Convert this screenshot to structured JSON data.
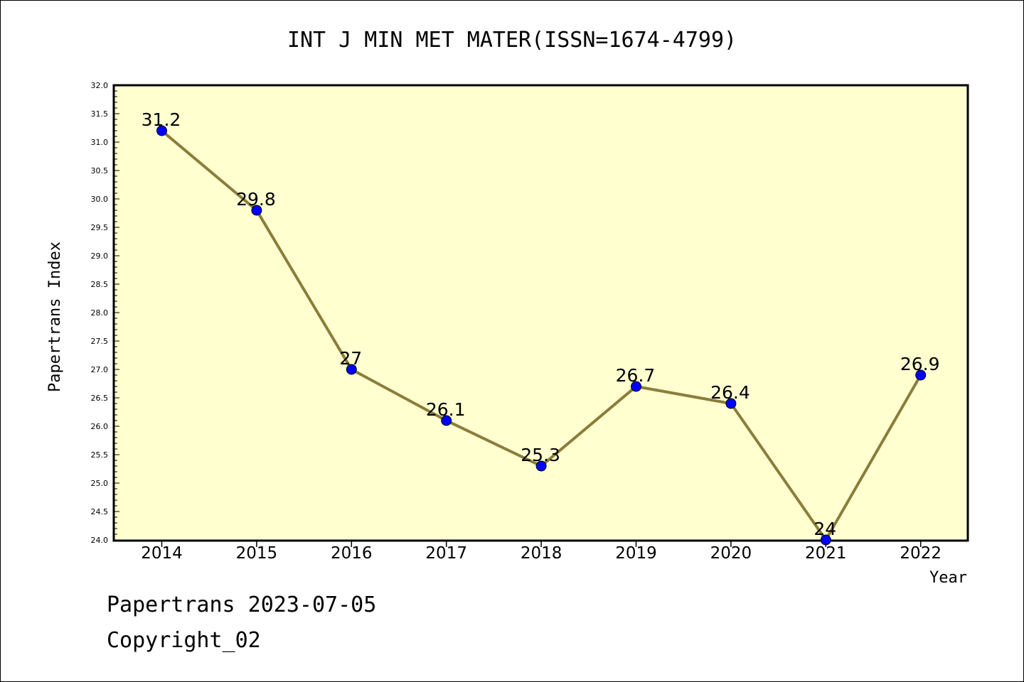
{
  "chart_data": {
    "type": "line",
    "title": "INT J MIN MET MATER(ISSN=1674-4799)",
    "xlabel": "Year",
    "ylabel": "Papertrans Index",
    "categories": [
      "2014",
      "2015",
      "2016",
      "2017",
      "2018",
      "2019",
      "2020",
      "2021",
      "2022"
    ],
    "series": [
      {
        "values": [
          31.2,
          29.8,
          27,
          26.1,
          25.3,
          26.7,
          26.4,
          24,
          26.9
        ],
        "labels": [
          "31.2",
          "29.8",
          "27",
          "26.1",
          "25.3",
          "26.7",
          "26.4",
          "24",
          "26.9"
        ]
      }
    ],
    "ylim": [
      24.0,
      32.0
    ],
    "yticks": [
      "24.0",
      "24.5",
      "25.0",
      "25.5",
      "26.0",
      "26.5",
      "27.0",
      "27.5",
      "28.0",
      "28.5",
      "29.0",
      "29.5",
      "30.0",
      "30.5",
      "31.0",
      "31.5",
      "32.0"
    ],
    "grid": false,
    "legend": "none",
    "colors": {
      "plot_background": "#ffffd0",
      "line": "#8b7d3a",
      "marker": "#0000ff",
      "axis": "#000000"
    }
  },
  "footer": {
    "line1": "Papertrans 2023-07-05",
    "line2": "Copyright_02"
  }
}
